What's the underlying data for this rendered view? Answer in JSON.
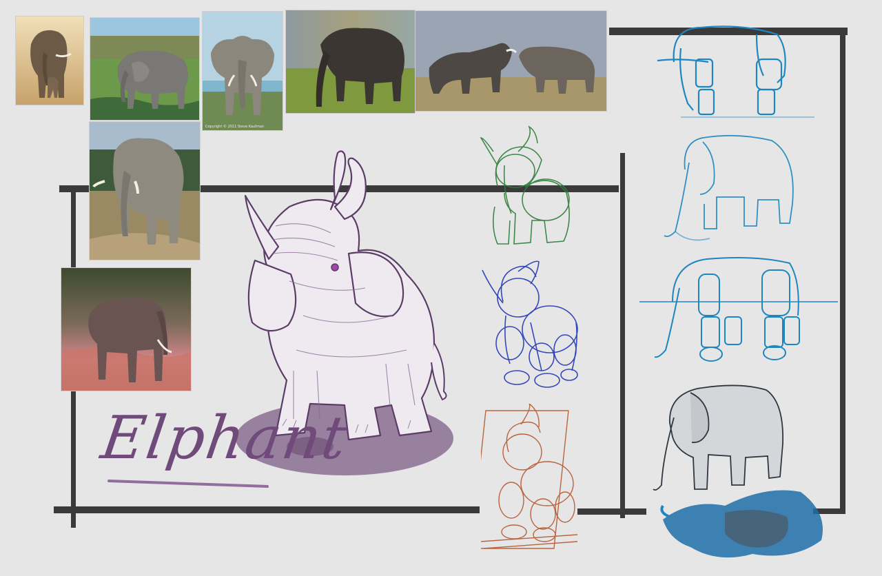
{
  "canvas": {
    "background": "#e6e6e6",
    "frame_color": "#3a3a3a"
  },
  "title": {
    "text": "Elphant",
    "color": "#6f4a7b"
  },
  "reference_photos": [
    {
      "id": "cow-and-calf",
      "subject": "elephant-photo"
    },
    {
      "id": "wetland-bull",
      "subject": "elephant-photo"
    },
    {
      "id": "front-ears",
      "subject": "elephant-photo",
      "caption": "Copyright © 2011 Steve Kaufman"
    },
    {
      "id": "grass-side",
      "subject": "elephant-photo"
    },
    {
      "id": "sparring-pair",
      "subject": "elephant-photo"
    },
    {
      "id": "road-walk",
      "subject": "elephant-photo"
    },
    {
      "id": "dusk-water",
      "subject": "elephant-photo"
    }
  ],
  "sketch_colors": {
    "main": "#6e4d7a",
    "green": "#2f7d3a",
    "blue": "#2b3fb8",
    "orange": "#b5552c",
    "cyan": "#1e86bf",
    "shadow": "#1e6ea8"
  }
}
